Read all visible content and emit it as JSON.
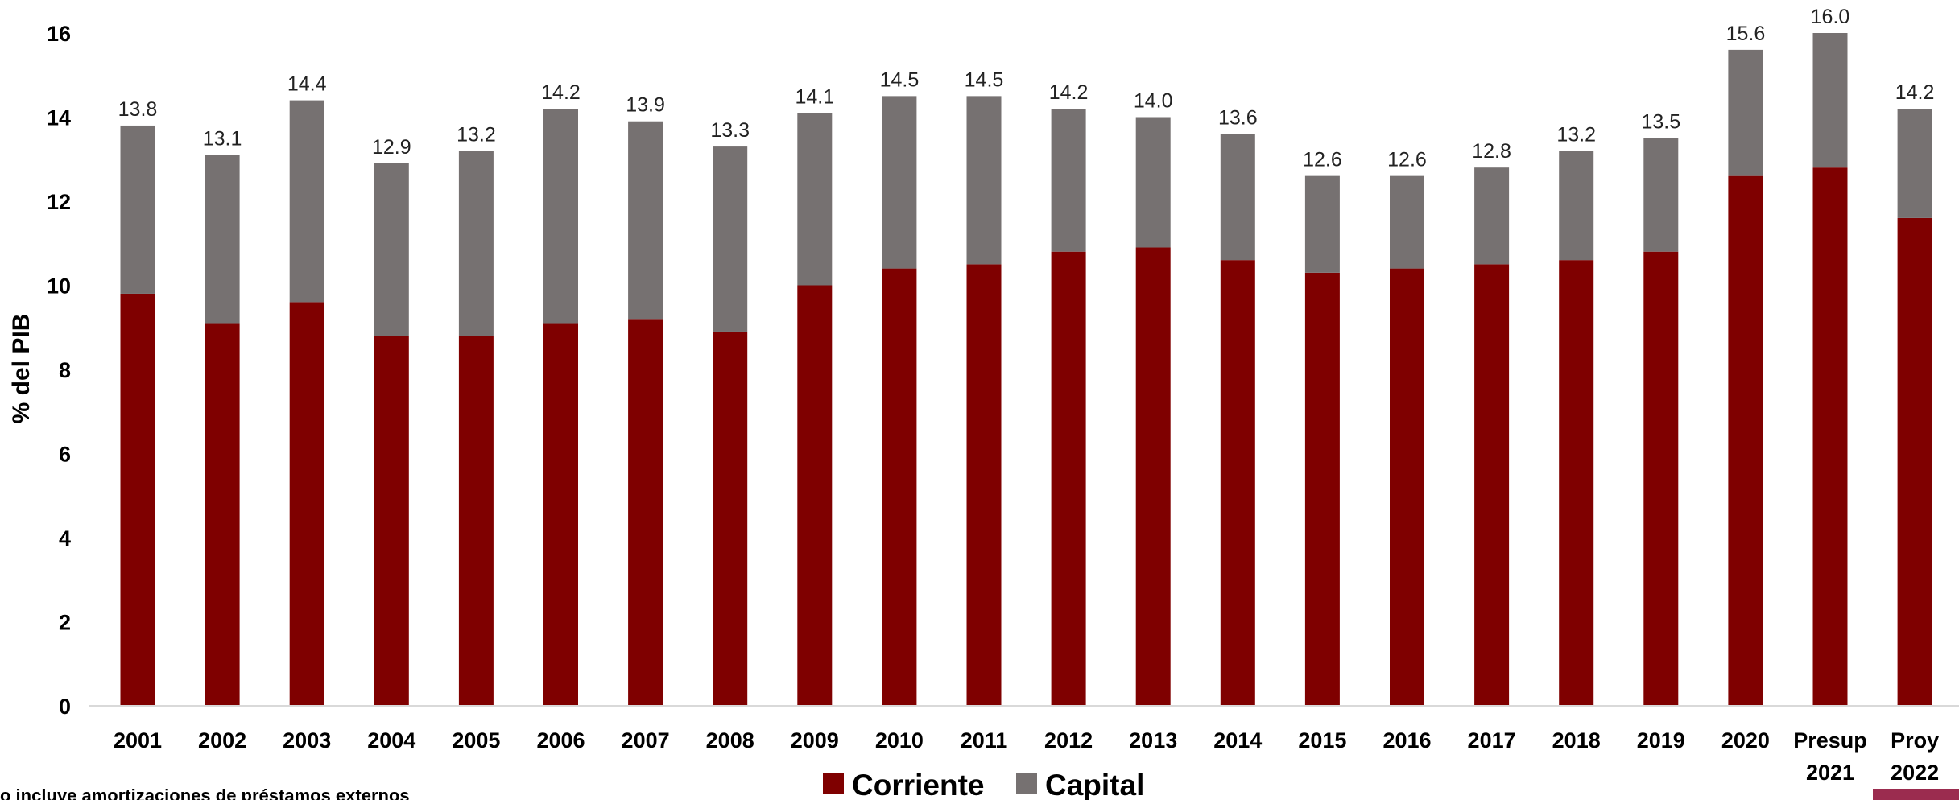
{
  "chart_data": {
    "type": "bar",
    "stacked": true,
    "title": "",
    "xlabel": "",
    "ylabel": "% del PIB",
    "ylim": [
      0,
      16
    ],
    "yticks": [
      "0",
      "2",
      "4",
      "6",
      "8",
      "10",
      "12",
      "14",
      "16"
    ],
    "grid": false,
    "legend_position": "bottom-center",
    "categories": [
      [
        "2001"
      ],
      [
        "2002"
      ],
      [
        "2003"
      ],
      [
        "2004"
      ],
      [
        "2005"
      ],
      [
        "2006"
      ],
      [
        "2007"
      ],
      [
        "2008"
      ],
      [
        "2009"
      ],
      [
        "2010"
      ],
      [
        "2011"
      ],
      [
        "2012"
      ],
      [
        "2013"
      ],
      [
        "2014"
      ],
      [
        "2015"
      ],
      [
        "2016"
      ],
      [
        "2017"
      ],
      [
        "2018"
      ],
      [
        "2019"
      ],
      [
        "2020"
      ],
      [
        "Presup",
        "2021"
      ],
      [
        "Proy",
        "2022"
      ]
    ],
    "series": [
      {
        "name": "Corriente",
        "color": "#7f0000",
        "values": [
          9.8,
          9.1,
          9.6,
          8.8,
          8.8,
          9.1,
          9.2,
          8.9,
          10.0,
          10.4,
          10.5,
          10.8,
          10.9,
          10.6,
          10.3,
          10.4,
          10.5,
          10.6,
          10.8,
          12.6,
          12.8,
          11.6
        ]
      },
      {
        "name": "Capital",
        "color": "#767171",
        "values": [
          4.0,
          4.0,
          4.8,
          4.1,
          4.4,
          5.1,
          4.7,
          4.4,
          4.1,
          4.1,
          4.0,
          3.4,
          3.1,
          3.0,
          2.3,
          2.2,
          2.3,
          2.6,
          2.7,
          3.0,
          3.2,
          2.6
        ]
      }
    ],
    "totals": [
      "13.8",
      "13.1",
      "14.4",
      "12.9",
      "13.2",
      "14.2",
      "13.9",
      "13.3",
      "14.1",
      "14.5",
      "14.5",
      "14.2",
      "14.0",
      "13.6",
      "12.6",
      "12.6",
      "12.8",
      "13.2",
      "13.5",
      "15.6",
      "16.0",
      "14.2"
    ],
    "footnote": "o incluye amortizaciones de préstamos externos"
  }
}
